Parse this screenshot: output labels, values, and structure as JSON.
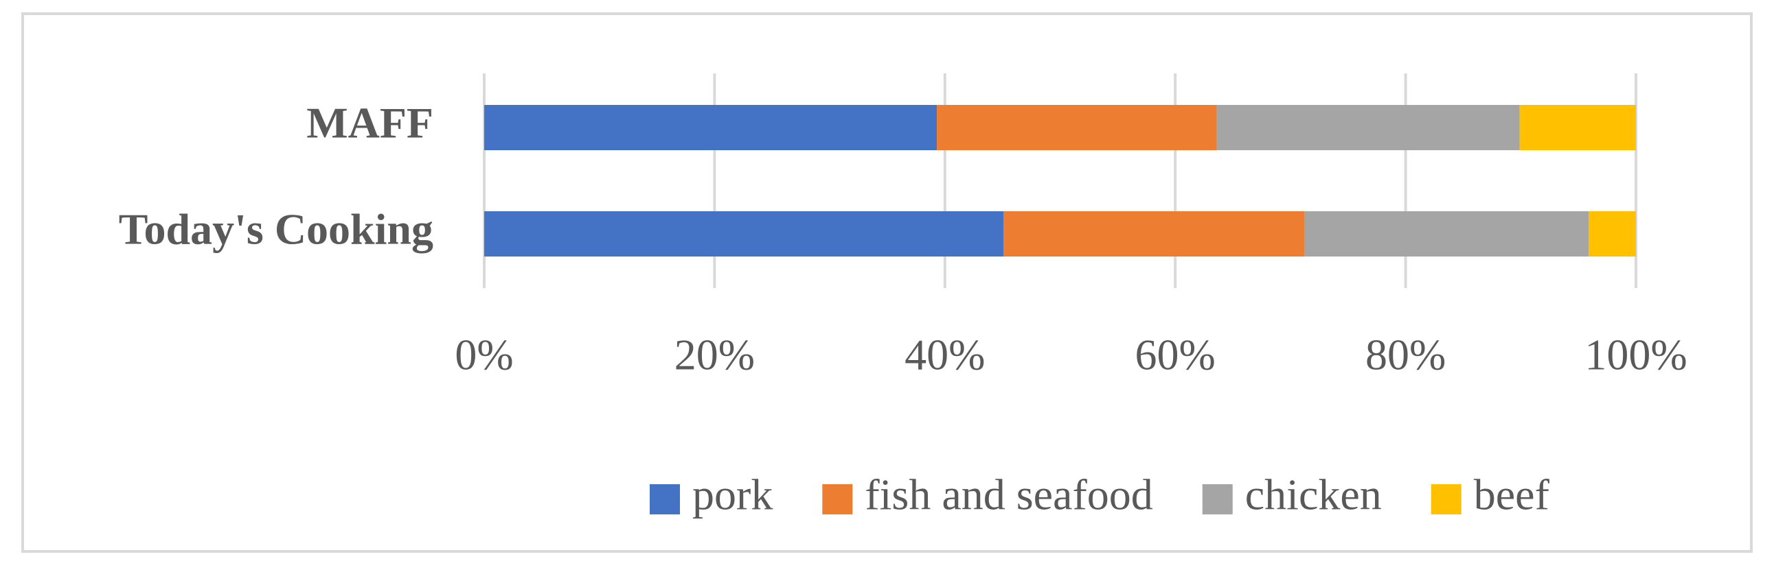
{
  "chart_data": {
    "type": "stacked-bar-horizontal",
    "categories": [
      "MAFF",
      "Today's Cooking"
    ],
    "series": [
      {
        "name": "pork",
        "color": "#4472c4",
        "values": [
          39.3,
          45.1
        ]
      },
      {
        "name": "fish and seafood",
        "color": "#ed7d31",
        "values": [
          24.3,
          26.1
        ]
      },
      {
        "name": "chicken",
        "color": "#a5a5a5",
        "values": [
          26.3,
          24.7
        ]
      },
      {
        "name": "beef",
        "color": "#ffc000",
        "values": [
          10.1,
          4.1
        ]
      }
    ],
    "xlim": [
      0,
      100
    ],
    "xticks": [
      {
        "value": 0,
        "label": "0%"
      },
      {
        "value": 20,
        "label": "20%"
      },
      {
        "value": 40,
        "label": "40%"
      },
      {
        "value": 60,
        "label": "60%"
      },
      {
        "value": 80,
        "label": "80%"
      },
      {
        "value": 100,
        "label": "100%"
      }
    ],
    "grid": true,
    "legend": "bottom"
  }
}
